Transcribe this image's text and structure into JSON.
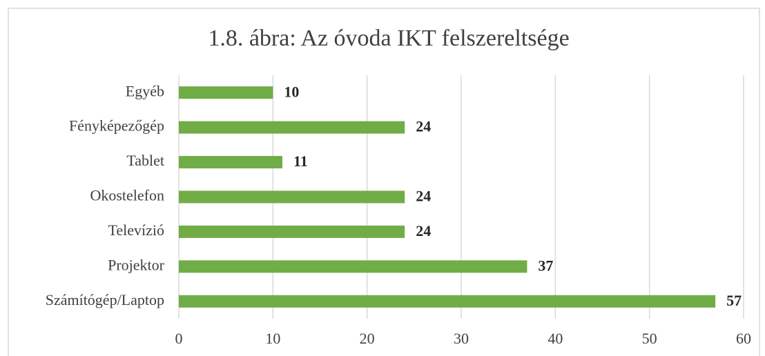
{
  "chart_data": {
    "type": "bar",
    "orientation": "horizontal",
    "title": "1.8. ábra: Az óvoda IKT felszereltsége",
    "categories": [
      "Egyéb",
      "Fényképezőgép",
      "Tablet",
      "Okostelefon",
      "Televízió",
      "Projektor",
      "Számítógép/Laptop"
    ],
    "values": [
      10,
      24,
      11,
      24,
      24,
      37,
      57
    ],
    "color": "#70ad47",
    "xlim": [
      0,
      60
    ],
    "xticks": [
      0,
      10,
      20,
      30,
      40,
      50,
      60
    ],
    "grid": true
  }
}
